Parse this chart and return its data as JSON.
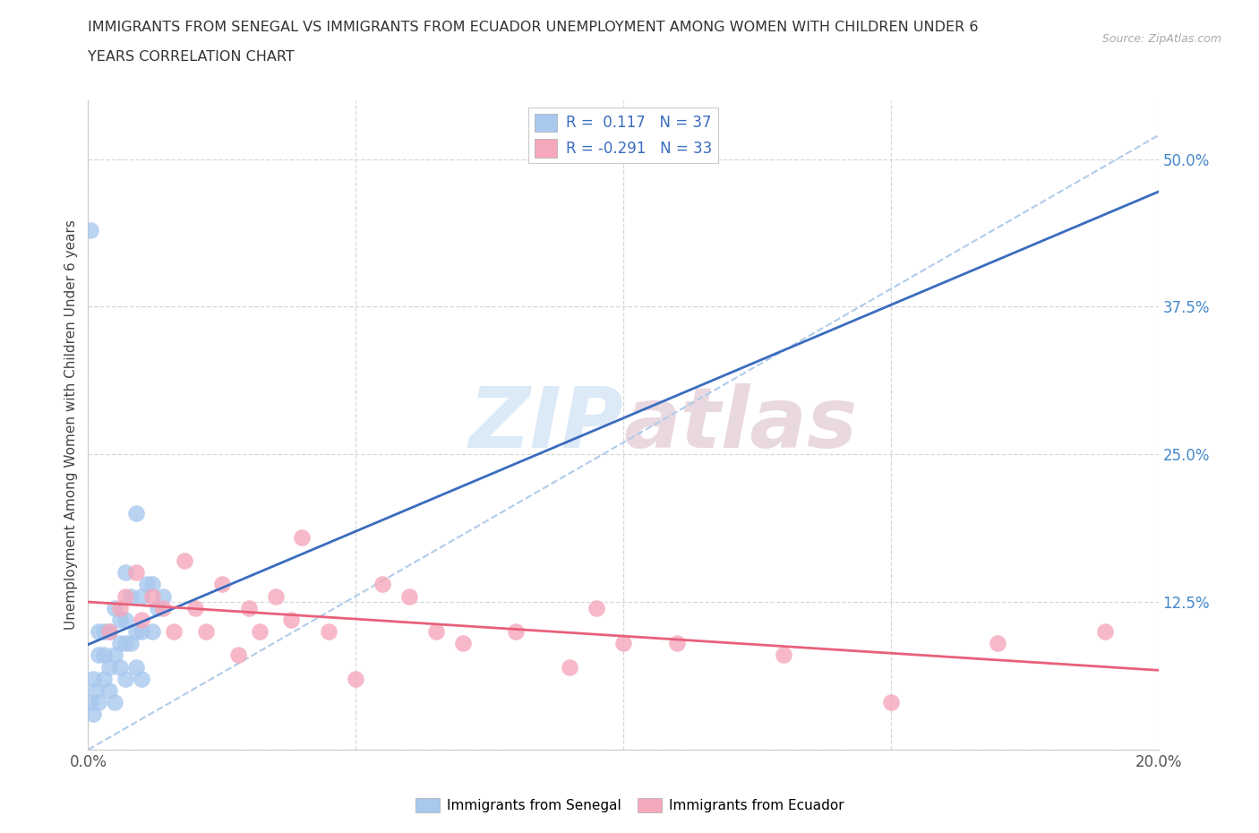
{
  "title_line1": "IMMIGRANTS FROM SENEGAL VS IMMIGRANTS FROM ECUADOR UNEMPLOYMENT AMONG WOMEN WITH CHILDREN UNDER 6",
  "title_line2": "YEARS CORRELATION CHART",
  "source": "Source: ZipAtlas.com",
  "ylabel": "Unemployment Among Women with Children Under 6 years",
  "xlim": [
    0.0,
    0.2
  ],
  "ylim": [
    0.0,
    0.55
  ],
  "yticks": [
    0.0,
    0.125,
    0.25,
    0.375,
    0.5
  ],
  "ytick_labels": [
    "",
    "12.5%",
    "25.0%",
    "37.5%",
    "50.0%"
  ],
  "xticks": [
    0.0,
    0.05,
    0.1,
    0.15,
    0.2
  ],
  "xtick_labels": [
    "0.0%",
    "",
    "",
    "",
    "20.0%"
  ],
  "senegal_R": 0.117,
  "senegal_N": 37,
  "ecuador_R": -0.291,
  "ecuador_N": 33,
  "senegal_color": "#a8c8ee",
  "ecuador_color": "#f5a8bc",
  "senegal_line_color": "#3a6cbf",
  "ecuador_line_color": "#e8607a",
  "trend_line_color": "#b0cce8",
  "background_color": "#ffffff",
  "watermark_zip": "ZIP",
  "watermark_atlas": "atlas",
  "senegal_x": [
    0.0005,
    0.001,
    0.001,
    0.0015,
    0.002,
    0.002,
    0.002,
    0.003,
    0.003,
    0.003,
    0.004,
    0.004,
    0.004,
    0.005,
    0.005,
    0.005,
    0.006,
    0.006,
    0.006,
    0.007,
    0.007,
    0.007,
    0.007,
    0.008,
    0.008,
    0.009,
    0.009,
    0.009,
    0.01,
    0.01,
    0.01,
    0.011,
    0.012,
    0.012,
    0.013,
    0.014,
    0.0005
  ],
  "senegal_y": [
    0.04,
    0.03,
    0.06,
    0.05,
    0.04,
    0.08,
    0.1,
    0.06,
    0.08,
    0.1,
    0.05,
    0.07,
    0.1,
    0.04,
    0.08,
    0.12,
    0.07,
    0.09,
    0.11,
    0.06,
    0.09,
    0.11,
    0.15,
    0.09,
    0.13,
    0.07,
    0.1,
    0.2,
    0.06,
    0.1,
    0.13,
    0.14,
    0.1,
    0.14,
    0.12,
    0.13,
    0.44
  ],
  "ecuador_x": [
    0.004,
    0.006,
    0.007,
    0.009,
    0.01,
    0.012,
    0.014,
    0.016,
    0.018,
    0.02,
    0.022,
    0.025,
    0.028,
    0.03,
    0.032,
    0.035,
    0.038,
    0.04,
    0.045,
    0.05,
    0.055,
    0.06,
    0.065,
    0.07,
    0.08,
    0.09,
    0.095,
    0.1,
    0.11,
    0.13,
    0.15,
    0.17,
    0.19
  ],
  "ecuador_y": [
    0.1,
    0.12,
    0.13,
    0.15,
    0.11,
    0.13,
    0.12,
    0.1,
    0.16,
    0.12,
    0.1,
    0.14,
    0.08,
    0.12,
    0.1,
    0.13,
    0.11,
    0.18,
    0.1,
    0.06,
    0.14,
    0.13,
    0.1,
    0.09,
    0.1,
    0.07,
    0.12,
    0.09,
    0.09,
    0.08,
    0.04,
    0.09,
    0.1
  ]
}
